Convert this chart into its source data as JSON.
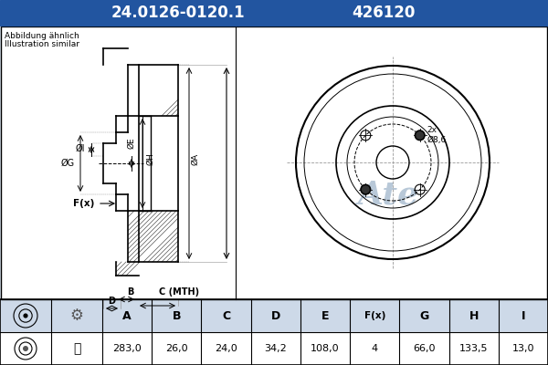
{
  "title_part": "24.0126-0120.1",
  "title_code": "426120",
  "header_bg": "#2255a0",
  "header_text_color": "#ffffff",
  "body_bg": "#cdd9e8",
  "note_line1": "Abbildung ähnlich",
  "note_line2": "Illustration similar",
  "table_headers": [
    "A",
    "B",
    "C",
    "D",
    "E",
    "F(x)",
    "G",
    "H",
    "I"
  ],
  "table_values": [
    "283,0",
    "26,0",
    "24,0",
    "34,2",
    "108,0",
    "4",
    "66,0",
    "133,5",
    "13,0"
  ],
  "watermark_color": "#b8c8d8",
  "lc": "#000000",
  "drawing_bg": "#ffffff",
  "outer_bg": "#cdd9e8"
}
